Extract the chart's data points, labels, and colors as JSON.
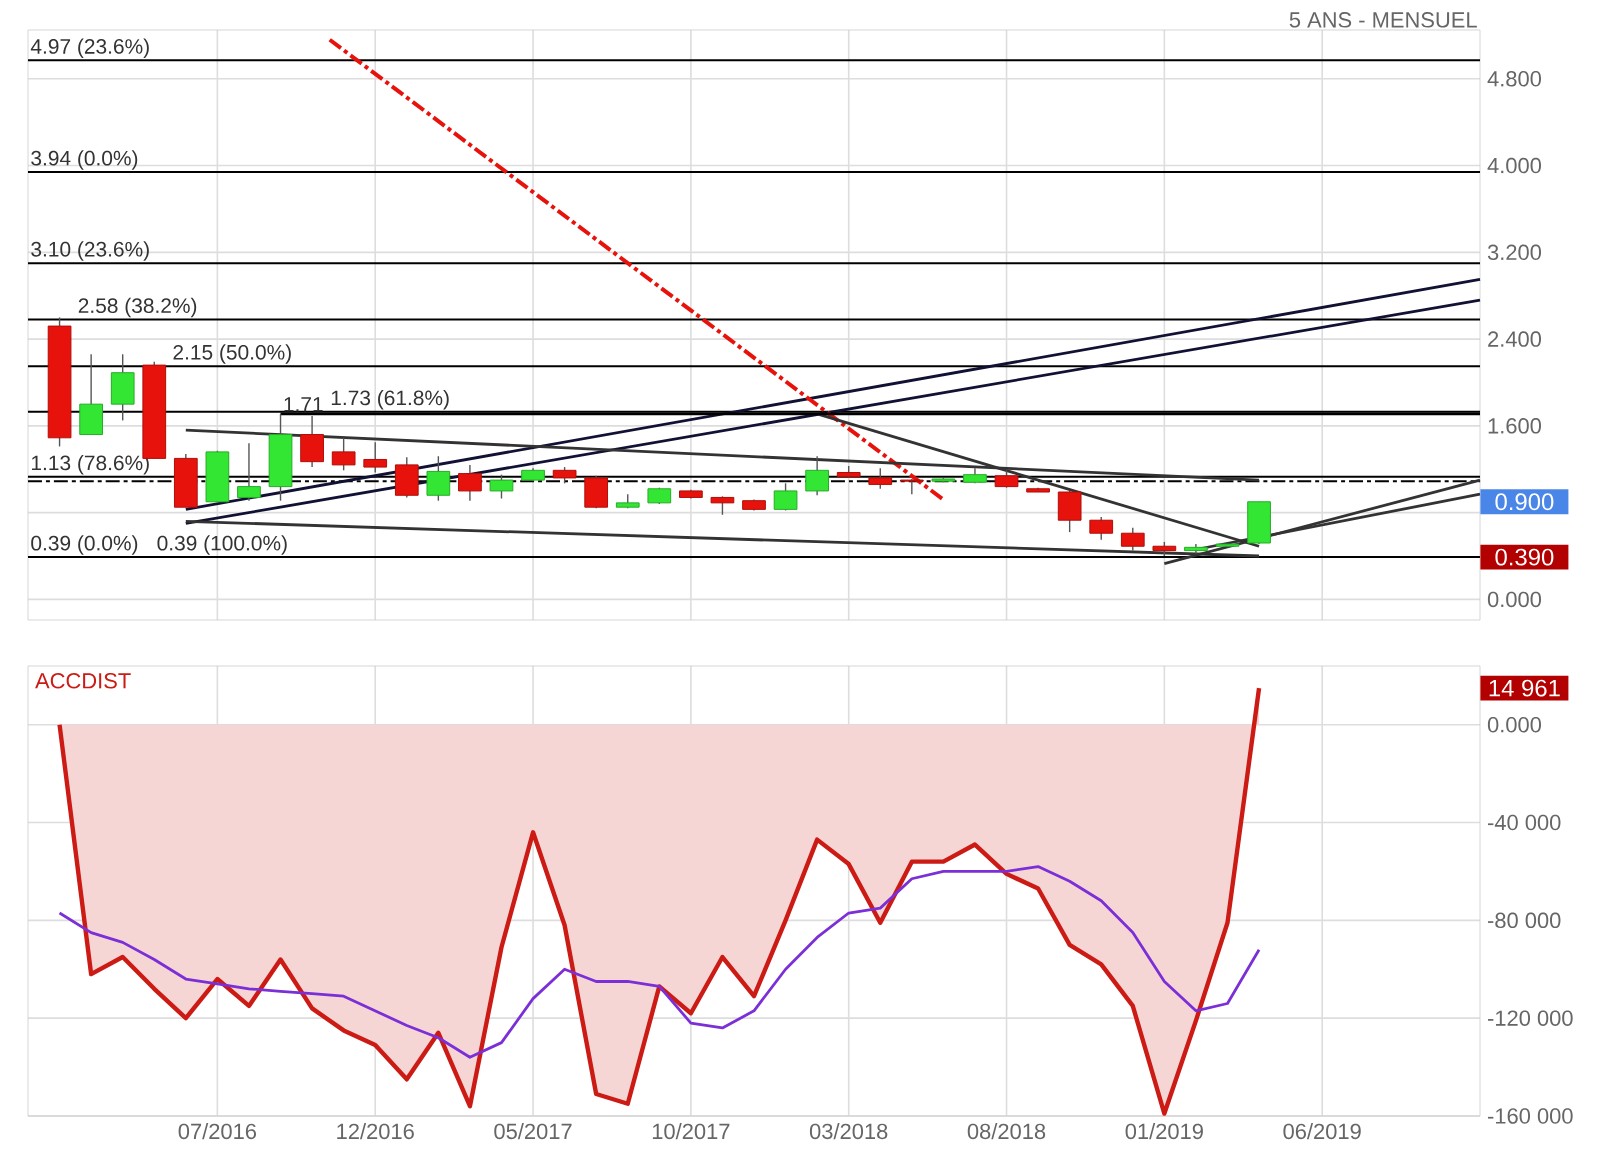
{
  "chart_data": [
    {
      "type": "candlestick",
      "subtitle": "5 ANS - MENSUEL",
      "x": [
        "2016-02",
        "2016-03",
        "2016-04",
        "2016-05",
        "2016-06",
        "2016-07",
        "2016-08",
        "2016-09",
        "2016-10",
        "2016-11",
        "2016-12",
        "2017-01",
        "2017-02",
        "2017-03",
        "2017-04",
        "2017-05",
        "2017-06",
        "2017-07",
        "2017-08",
        "2017-09",
        "2017-10",
        "2017-11",
        "2017-12",
        "2018-01",
        "2018-02",
        "2018-03",
        "2018-04",
        "2018-05",
        "2018-06",
        "2018-07",
        "2018-08",
        "2018-09",
        "2018-10",
        "2018-11",
        "2018-12",
        "2019-01",
        "2019-02",
        "2019-03",
        "2019-04"
      ],
      "ohlc": [
        [
          2.52,
          2.6,
          1.41,
          1.49
        ],
        [
          1.52,
          2.26,
          1.52,
          1.8
        ],
        [
          1.8,
          2.26,
          1.65,
          2.09
        ],
        [
          2.16,
          2.19,
          1.3,
          1.3
        ],
        [
          1.3,
          1.34,
          0.85,
          0.85
        ],
        [
          0.9,
          1.37,
          0.9,
          1.36
        ],
        [
          0.94,
          1.44,
          0.91,
          1.04
        ],
        [
          1.04,
          1.71,
          0.91,
          1.52
        ],
        [
          1.52,
          1.69,
          1.22,
          1.27
        ],
        [
          1.36,
          1.49,
          1.19,
          1.24
        ],
        [
          1.29,
          1.45,
          1.17,
          1.22
        ],
        [
          1.24,
          1.31,
          0.94,
          0.96
        ],
        [
          0.96,
          1.32,
          0.91,
          1.18
        ],
        [
          1.16,
          1.24,
          0.91,
          1.0
        ],
        [
          1.0,
          1.15,
          0.93,
          1.1
        ],
        [
          1.1,
          1.21,
          1.09,
          1.19
        ],
        [
          1.19,
          1.22,
          1.07,
          1.12
        ],
        [
          1.12,
          1.14,
          0.84,
          0.85
        ],
        [
          0.85,
          0.97,
          0.84,
          0.89
        ],
        [
          0.89,
          1.03,
          0.88,
          1.02
        ],
        [
          1.0,
          1.01,
          0.93,
          0.94
        ],
        [
          0.94,
          0.95,
          0.78,
          0.89
        ],
        [
          0.91,
          0.92,
          0.82,
          0.83
        ],
        [
          0.83,
          1.07,
          0.82,
          1.0
        ],
        [
          1.0,
          1.32,
          0.96,
          1.19
        ],
        [
          1.17,
          1.23,
          1.12,
          1.13
        ],
        [
          1.12,
          1.21,
          1.02,
          1.06
        ],
        [
          1.1,
          1.11,
          0.97,
          1.09
        ],
        [
          1.09,
          1.12,
          1.08,
          1.11
        ],
        [
          1.08,
          1.21,
          1.07,
          1.15
        ],
        [
          1.14,
          1.19,
          1.03,
          1.04
        ],
        [
          1.02,
          1.03,
          0.99,
          0.99
        ],
        [
          0.99,
          1.0,
          0.62,
          0.73
        ],
        [
          0.73,
          0.76,
          0.55,
          0.61
        ],
        [
          0.61,
          0.66,
          0.45,
          0.49
        ],
        [
          0.49,
          0.53,
          0.4,
          0.45
        ],
        [
          0.45,
          0.51,
          0.42,
          0.48
        ],
        [
          0.49,
          0.51,
          0.48,
          0.51
        ],
        [
          0.52,
          0.9,
          0.51,
          0.9
        ]
      ],
      "colors": [
        "#e8120c",
        "#33e633",
        "#33e633",
        "#e8120c",
        "#e8120c",
        "#33e633",
        "#33e633",
        "#33e633",
        "#e8120c",
        "#e8120c",
        "#e8120c",
        "#e8120c",
        "#33e633",
        "#e8120c",
        "#33e633",
        "#33e633",
        "#e8120c",
        "#e8120c",
        "#33e633",
        "#33e633",
        "#e8120c",
        "#e8120c",
        "#e8120c",
        "#33e633",
        "#33e633",
        "#e8120c",
        "#e8120c",
        "#e8120c",
        "#33e633",
        "#33e633",
        "#e8120c",
        "#e8120c",
        "#e8120c",
        "#e8120c",
        "#e8120c",
        "#e8120c",
        "#33e633",
        "#33e633",
        "#33e633"
      ],
      "series": [
        {
          "type": "line",
          "color": "#111133",
          "x": [
            "2016-06",
            "2019-11"
          ],
          "values": [
            0.83,
            2.95
          ]
        },
        {
          "type": "line",
          "color": "#111133",
          "x": [
            "2016-06",
            "2019-11"
          ],
          "values": [
            0.7,
            2.76
          ]
        },
        {
          "type": "line",
          "color": "#e8120c",
          "line_style": "dashed",
          "x": [
            "2016-10-18",
            "2018-06"
          ],
          "values": [
            5.16,
            0.92
          ]
        },
        {
          "type": "line",
          "color": "#333333",
          "x": [
            "2016-06",
            "2019-04"
          ],
          "values": [
            1.56,
            1.1
          ]
        },
        {
          "type": "line",
          "color": "#333333",
          "x": [
            "2016-06",
            "2019-04"
          ],
          "values": [
            0.72,
            0.4
          ]
        },
        {
          "type": "line",
          "color": "#333333",
          "x": [
            "2018-02",
            "2019-04"
          ],
          "values": [
            1.71,
            0.49
          ]
        },
        {
          "type": "line",
          "color": "#333333",
          "x": [
            "2019-01",
            "2019-11"
          ],
          "values": [
            0.33,
            1.1
          ]
        },
        {
          "type": "line",
          "color": "#333333",
          "x": [
            "2019-02",
            "2019-11"
          ],
          "values": [
            0.46,
            0.97
          ]
        },
        {
          "type": "line",
          "color": "#000000",
          "x": [
            "2016-09",
            "2019-11"
          ],
          "values": [
            1.71,
            1.71
          ]
        }
      ],
      "ref_lines": [
        {
          "axis": "y",
          "value": 4.97,
          "label": "4.97  (23.6%)"
        },
        {
          "axis": "y",
          "value": 3.94,
          "label": "3.94  (0.0%)"
        },
        {
          "axis": "y",
          "value": 3.1,
          "label": "3.10  (23.6%)"
        },
        {
          "axis": "y",
          "value": 2.58,
          "label": "2.58  (38.2%)"
        },
        {
          "axis": "y",
          "value": 2.15,
          "label": "2.15  (50.0%)"
        },
        {
          "axis": "y",
          "value": 1.73,
          "label": "1.73  (61.8%)"
        },
        {
          "axis": "y",
          "value": 1.13,
          "label": "1.13  (78.6%)"
        },
        {
          "axis": "y",
          "value": 1.09,
          "line_style": "dashed"
        },
        {
          "axis": "y",
          "value": 0.39,
          "label": "0.39  (0.0%)"
        }
      ],
      "annotations": [
        {
          "text": "1.71",
          "x": "2016-09",
          "y": 1.71
        },
        "0.900",
        "0.390",
        {
          "text": "0.39  (100.0%)",
          "x": "2016-05",
          "y": 0.39
        }
      ],
      "xlim": [
        "2016-01",
        "2019-11"
      ],
      "xticks": [
        {
          "value": "2016-07",
          "label": null
        },
        {
          "value": "2016-12",
          "label": null
        },
        {
          "value": "2017-05",
          "label": null
        },
        {
          "value": "2017-10",
          "label": null
        },
        {
          "value": "2018-03",
          "label": null
        },
        {
          "value": "2018-08",
          "label": null
        },
        {
          "value": "2019-01",
          "label": null
        },
        {
          "value": "2019-06",
          "label": null
        }
      ],
      "ylim": [
        -0.19,
        5.25
      ],
      "yticks": [
        {
          "value": 0,
          "label": "0.000"
        },
        {
          "value": 0.8,
          "label": null
        },
        {
          "value": 1.6,
          "label": "1.600"
        },
        {
          "value": 2.4,
          "label": "2.400"
        },
        {
          "value": 3.2,
          "label": "3.200"
        },
        {
          "value": 4.0,
          "label": "4.000"
        },
        {
          "value": 4.8,
          "label": "4.800"
        }
      ],
      "tick_labels": "y",
      "grid": true
    },
    {
      "type": "area",
      "title": "ACCDIST",
      "x": [
        "2016-02",
        "2016-03",
        "2016-04",
        "2016-05",
        "2016-06",
        "2016-07",
        "2016-08",
        "2016-09",
        "2016-10",
        "2016-11",
        "2016-12",
        "2017-01",
        "2017-02",
        "2017-03",
        "2017-04",
        "2017-05",
        "2017-06",
        "2017-07",
        "2017-08",
        "2017-09",
        "2017-10",
        "2017-11",
        "2017-12",
        "2018-01",
        "2018-02",
        "2018-03",
        "2018-04",
        "2018-05",
        "2018-06",
        "2018-07",
        "2018-08",
        "2018-09",
        "2018-10",
        "2018-11",
        "2018-12",
        "2019-01",
        "2019-02",
        "2019-03",
        "2019-04"
      ],
      "series": [
        {
          "type": "area",
          "color": "#cc1a14",
          "values": [
            0,
            -102000,
            -95000,
            -108000,
            -120000,
            -104000,
            -115000,
            -96000,
            -116000,
            -125000,
            -131000,
            -145000,
            -126000,
            -156000,
            -91000,
            -44000,
            -82000,
            -151000,
            -155000,
            -107000,
            -118000,
            -95000,
            -111000,
            -80000,
            -47000,
            -57000,
            -81000,
            -56000,
            -56000,
            -49000,
            -61000,
            -67000,
            -90000,
            -98000,
            -115000,
            -159000,
            -121000,
            -81000,
            14961
          ]
        },
        {
          "type": "line",
          "color": "#7b2fd6",
          "values": [
            -77000,
            -85000,
            -89000,
            -96000,
            -104000,
            -106000,
            -108000,
            -109000,
            -110000,
            -111000,
            -117000,
            -123000,
            -128000,
            -136000,
            -130000,
            -112000,
            -100000,
            -105000,
            -105000,
            -107000,
            -122000,
            -124000,
            -117000,
            -100000,
            -87000,
            -77000,
            -75000,
            -63000,
            -60000,
            -60000,
            -60000,
            -58000,
            -64000,
            -72000,
            -85000,
            -105000,
            -117000,
            -114000,
            -92000
          ]
        }
      ],
      "annotations": [
        "14 961"
      ],
      "xlim": [
        "2016-01",
        "2019-11"
      ],
      "xticks": [
        {
          "value": "2016-07",
          "label": "07/2016"
        },
        {
          "value": "2016-12",
          "label": "12/2016"
        },
        {
          "value": "2017-05",
          "label": "05/2017"
        },
        {
          "value": "2017-10",
          "label": "10/2017"
        },
        {
          "value": "2018-03",
          "label": "03/2018"
        },
        {
          "value": "2018-08",
          "label": "08/2018"
        },
        {
          "value": "2019-01",
          "label": "01/2019"
        },
        {
          "value": "2019-06",
          "label": "06/2019"
        }
      ],
      "ylim": [
        -160000,
        24000
      ],
      "yticks": [
        {
          "value": 0,
          "label": "0.000"
        },
        {
          "value": -40000,
          "label": "-40 000"
        },
        {
          "value": -80000,
          "label": "-80 000"
        },
        {
          "value": -120000,
          "label": "-120 000"
        },
        {
          "value": -160000,
          "label": "-160 000"
        }
      ],
      "grid": true
    }
  ]
}
